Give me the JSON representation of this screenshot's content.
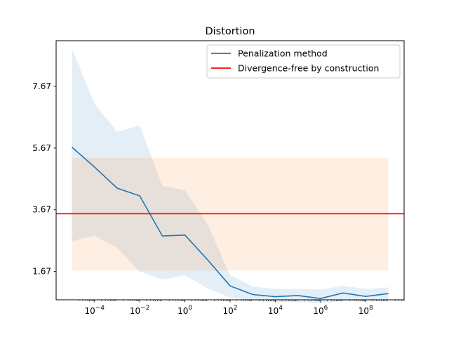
{
  "chart_data": {
    "type": "line",
    "title": "Distortion",
    "xscale": "log",
    "x_tick_labels": [
      {
        "base": "10",
        "exp": "−4",
        "value": 0.0001
      },
      {
        "base": "10",
        "exp": "−2",
        "value": 0.01
      },
      {
        "base": "10",
        "exp": "0",
        "value": 1
      },
      {
        "base": "10",
        "exp": "2",
        "value": 100
      },
      {
        "base": "10",
        "exp": "4",
        "value": 10000
      },
      {
        "base": "10",
        "exp": "6",
        "value": 1000000
      },
      {
        "base": "10",
        "exp": "8",
        "value": 100000000
      }
    ],
    "y_ticks": [
      1.67,
      3.67,
      5.67,
      7.67
    ],
    "y_tick_labels": [
      "1.67",
      "3.67",
      "5.67",
      "7.67"
    ],
    "xlim_log10": [
      -5.7,
      9.7
    ],
    "ylim": [
      0.75,
      9.15
    ],
    "legend": {
      "position": "top-right"
    },
    "series": [
      {
        "name": "Penalization method",
        "color": "#1f77b4",
        "band_color": "#1f77b4",
        "x": [
          1e-05,
          0.0001,
          0.001,
          0.01,
          0.1,
          1,
          10,
          100,
          1000,
          10000,
          100000,
          1000000,
          10000000,
          100000000,
          1000000000
        ],
        "values": [
          5.7,
          5.05,
          4.37,
          4.12,
          2.82,
          2.85,
          2.05,
          1.2,
          0.92,
          0.85,
          0.89,
          0.79,
          0.97,
          0.86,
          0.95
        ],
        "lower": [
          2.65,
          2.83,
          2.43,
          1.67,
          1.4,
          1.55,
          1.12,
          0.82,
          0.71,
          0.67,
          0.68,
          0.64,
          0.71,
          0.69,
          0.73
        ],
        "upper": [
          8.9,
          7.1,
          6.2,
          6.4,
          4.45,
          4.3,
          3.2,
          1.55,
          1.18,
          1.1,
          1.1,
          1.08,
          1.2,
          1.1,
          1.15
        ]
      },
      {
        "name": "Divergence-free by construction",
        "color": "#ff0000",
        "band_color": "#ff7f0e",
        "x": [
          1e-05,
          1000000000
        ],
        "values": [
          3.54,
          3.54
        ],
        "lower": [
          1.7,
          1.7
        ],
        "upper": [
          5.35,
          5.35
        ]
      }
    ]
  }
}
